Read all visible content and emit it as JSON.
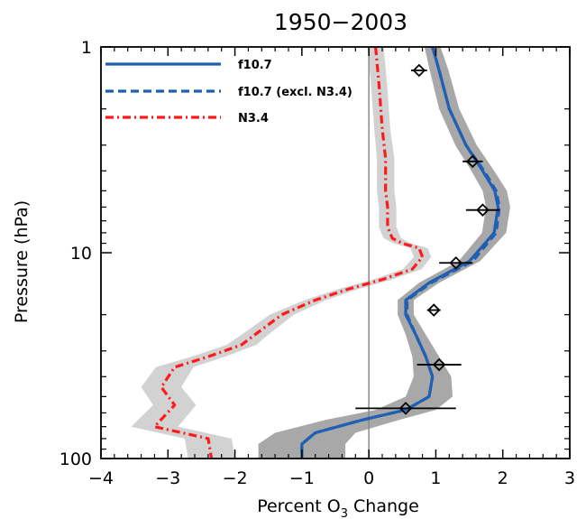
{
  "chart_data": {
    "type": "line",
    "title": "1950−2003",
    "xlabel_prefix": "Percent O",
    "xlabel_sub": "3",
    "xlabel_suffix": " Change",
    "ylabel": "Pressure (hPa)",
    "xlim": [
      -4,
      3
    ],
    "ylim": [
      100,
      1
    ],
    "y_scale": "log",
    "x_ticks": [
      -4,
      -3,
      -2,
      -1,
      0,
      1,
      2,
      3
    ],
    "x_tick_labels": [
      "−4",
      "−3",
      "−2",
      "−1",
      "0",
      "1",
      "2",
      "3"
    ],
    "y_ticks": [
      1,
      10,
      100
    ],
    "y_tick_labels": [
      "1",
      "10",
      "100"
    ],
    "vertical_reference_x": 0,
    "legend_position": "top-left",
    "series": [
      {
        "name": "f10.7",
        "style": "solid",
        "color": "#1f5fb4",
        "shade_color": "#a8a8a8",
        "points": [
          [
            0.95,
            1
          ],
          [
            1.05,
            1.3
          ],
          [
            1.2,
            2
          ],
          [
            1.45,
            3
          ],
          [
            1.7,
            4
          ],
          [
            1.88,
            5
          ],
          [
            1.93,
            6
          ],
          [
            1.87,
            8
          ],
          [
            1.5,
            11
          ],
          [
            0.9,
            14
          ],
          [
            0.55,
            17
          ],
          [
            0.55,
            20
          ],
          [
            0.7,
            25
          ],
          [
            0.85,
            32
          ],
          [
            0.95,
            40
          ],
          [
            0.9,
            50
          ],
          [
            0.55,
            58
          ],
          [
            -0.1,
            65
          ],
          [
            -0.8,
            75
          ],
          [
            -1.0,
            85
          ],
          [
            -1.0,
            100
          ]
        ],
        "shade_halfwidth": [
          0.12,
          0.14,
          0.15,
          0.16,
          0.17,
          0.18,
          0.18,
          0.18,
          0.16,
          0.15,
          0.12,
          0.12,
          0.15,
          0.2,
          0.28,
          0.35,
          0.45,
          0.55,
          0.6,
          0.65,
          0.65
        ]
      },
      {
        "name": "f10.7 (excl. N3.4)",
        "style": "dashed",
        "color": "#1f5fb4",
        "points": [
          [
            0.95,
            1
          ],
          [
            1.05,
            1.3
          ],
          [
            1.2,
            2
          ],
          [
            1.45,
            3
          ],
          [
            1.72,
            4
          ],
          [
            1.9,
            5
          ],
          [
            1.95,
            6
          ],
          [
            1.9,
            8
          ],
          [
            1.55,
            11
          ],
          [
            0.93,
            14
          ],
          [
            0.57,
            17
          ],
          [
            0.57,
            20
          ],
          [
            0.7,
            25
          ],
          [
            0.85,
            32
          ],
          [
            0.95,
            40
          ],
          [
            0.9,
            50
          ],
          [
            0.55,
            58
          ],
          [
            -0.1,
            65
          ],
          [
            -0.8,
            75
          ],
          [
            -1.0,
            85
          ],
          [
            -1.0,
            100
          ]
        ]
      },
      {
        "name": "N3.4",
        "style": "dashdot",
        "color": "#ff1a1a",
        "shade_color": "#d2d2d2",
        "points": [
          [
            0.1,
            1
          ],
          [
            0.15,
            1.5
          ],
          [
            0.2,
            2.5
          ],
          [
            0.25,
            3.5
          ],
          [
            0.25,
            4.5
          ],
          [
            0.25,
            5
          ],
          [
            0.28,
            6
          ],
          [
            0.28,
            7.5
          ],
          [
            0.35,
            8.5
          ],
          [
            0.5,
            9
          ],
          [
            0.75,
            9.5
          ],
          [
            0.8,
            10.5
          ],
          [
            0.65,
            12
          ],
          [
            0.2,
            13.5
          ],
          [
            -0.3,
            15
          ],
          [
            -0.8,
            17
          ],
          [
            -1.3,
            20
          ],
          [
            -1.7,
            25
          ],
          [
            -1.9,
            28
          ],
          [
            -2.4,
            32
          ],
          [
            -2.9,
            36
          ],
          [
            -3.1,
            45
          ],
          [
            -2.9,
            55
          ],
          [
            -3.2,
            70
          ],
          [
            -2.4,
            80
          ],
          [
            -2.35,
            100
          ]
        ],
        "shade_halfwidth": [
          0.12,
          0.12,
          0.12,
          0.13,
          0.13,
          0.13,
          0.13,
          0.13,
          0.13,
          0.13,
          0.13,
          0.13,
          0.14,
          0.14,
          0.15,
          0.16,
          0.18,
          0.2,
          0.22,
          0.25,
          0.28,
          0.3,
          0.32,
          0.35,
          0.35,
          0.35
        ]
      }
    ],
    "error_bars": [
      {
        "x": 0.75,
        "y": 1.3,
        "xerr": 0.12
      },
      {
        "x": 1.55,
        "y": 3.6,
        "xerr": 0.15
      },
      {
        "x": 1.7,
        "y": 6.2,
        "xerr": 0.25
      },
      {
        "x": 1.3,
        "y": 11.2,
        "xerr": 0.25
      },
      {
        "x": 0.97,
        "y": 19.0,
        "xerr": 0.1
      },
      {
        "x": 1.05,
        "y": 35.0,
        "xerr": 0.33
      },
      {
        "x": 0.55,
        "y": 57.0,
        "xerr": 0.75
      }
    ]
  }
}
